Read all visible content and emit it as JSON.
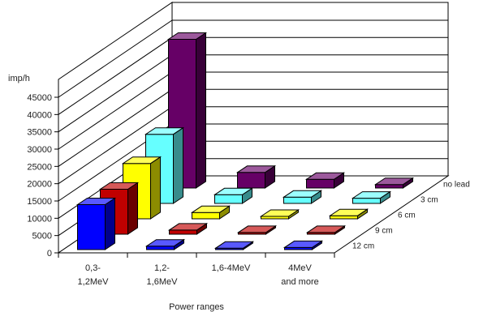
{
  "chart_data": {
    "type": "bar",
    "subtype": "3d-clustered-depth",
    "title": "",
    "xlabel": "Power ranges",
    "ylabel": "imp/h",
    "ylim": [
      0,
      45000
    ],
    "yticks": [
      "0",
      "5000",
      "10000",
      "15000",
      "20000",
      "25000",
      "30000",
      "35000",
      "40000",
      "45000"
    ],
    "grid": true,
    "categories": [
      {
        "line1": "0,3-",
        "line2": "1,2MeV"
      },
      {
        "line1": "1,2-",
        "line2": "1,6MeV"
      },
      {
        "line1": "1,6-4MeV",
        "line2": ""
      },
      {
        "line1": "4MeV",
        "line2": "and more"
      }
    ],
    "series": [
      {
        "name": "12 cm",
        "color": "#0000ff",
        "values": [
          13000,
          1000,
          400,
          600
        ]
      },
      {
        "name": "9 cm",
        "color": "#c00000",
        "values": [
          13000,
          1200,
          500,
          500
        ]
      },
      {
        "name": "6 cm",
        "color": "#ffff00",
        "values": [
          16000,
          1800,
          700,
          900
        ]
      },
      {
        "name": "3 cm",
        "color": "#66ffff",
        "values": [
          20000,
          2500,
          1800,
          1500
        ]
      },
      {
        "name": "no lead",
        "color": "#660066",
        "values": [
          43000,
          4500,
          2500,
          1000
        ]
      }
    ]
  }
}
